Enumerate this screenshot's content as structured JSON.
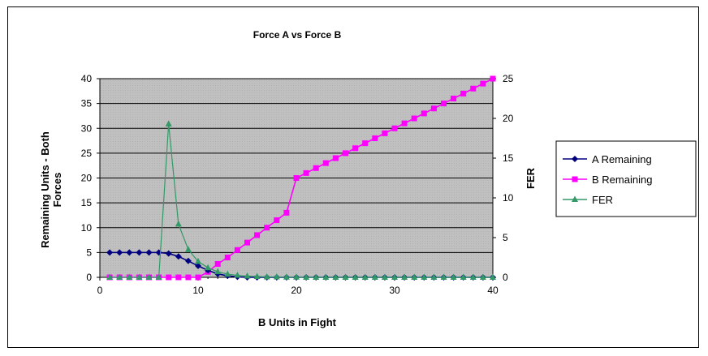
{
  "chart_data": {
    "type": "line",
    "title": "Force A vs Force B",
    "xlabel": "B Units in Fight",
    "ylabel": "Remaining Units - Both Forces",
    "y2label": "FER",
    "xlim": [
      0,
      40
    ],
    "ylim": [
      0,
      40
    ],
    "y2lim": [
      0,
      25
    ],
    "x_ticks": [
      "0",
      "10",
      "20",
      "30",
      "40"
    ],
    "y_ticks": [
      "0",
      "5",
      "10",
      "15",
      "20",
      "25",
      "30",
      "35",
      "40"
    ],
    "y2_ticks": [
      "0",
      "5",
      "10",
      "15",
      "20",
      "25"
    ],
    "grid": true,
    "legend": "right",
    "plot_background": "#c0c0c0",
    "x": [
      1,
      2,
      3,
      4,
      5,
      6,
      7,
      8,
      9,
      10,
      11,
      12,
      13,
      14,
      15,
      16,
      17,
      18,
      19,
      20,
      21,
      22,
      23,
      24,
      25,
      26,
      27,
      28,
      29,
      30,
      31,
      32,
      33,
      34,
      35,
      36,
      37,
      38,
      39,
      40
    ],
    "series": [
      {
        "name": "A Remaining",
        "axis": "left",
        "color": "#000080",
        "marker": "diamond",
        "values": [
          5,
          5,
          5,
          5,
          5,
          5,
          4.8,
          4.2,
          3.3,
          2.3,
          1.4,
          0.7,
          0.3,
          0.1,
          0,
          0,
          0,
          0,
          0,
          0,
          0,
          0,
          0,
          0,
          0,
          0,
          0,
          0,
          0,
          0,
          0,
          0,
          0,
          0,
          0,
          0,
          0,
          0,
          0,
          0
        ]
      },
      {
        "name": "B Remaining",
        "axis": "left",
        "color": "#ff00ff",
        "marker": "square",
        "values": [
          0,
          0,
          0,
          0,
          0,
          0,
          0,
          0,
          0,
          0,
          1.1,
          2.7,
          4.0,
          5.5,
          7.0,
          8.5,
          10.0,
          11.5,
          13.0,
          20.0,
          21.0,
          22.0,
          23.0,
          24.0,
          25.0,
          26.0,
          27.0,
          28.0,
          29.0,
          30.0,
          31.0,
          32.0,
          33.0,
          34.0,
          35.0,
          36.0,
          37.0,
          38.0,
          39.0,
          40.0
        ]
      },
      {
        "name": "FER",
        "axis": "right",
        "color": "#339966",
        "marker": "triangle",
        "values": [
          0,
          0,
          0,
          0,
          0,
          0,
          19.3,
          6.7,
          3.5,
          2.0,
          1.2,
          0.7,
          0.4,
          0.25,
          0.15,
          0.1,
          0.05,
          0.05,
          0.02,
          0.02,
          0,
          0,
          0,
          0,
          0,
          0,
          0,
          0,
          0,
          0,
          0,
          0,
          0,
          0,
          0,
          0,
          0,
          0,
          0,
          0
        ]
      }
    ]
  }
}
